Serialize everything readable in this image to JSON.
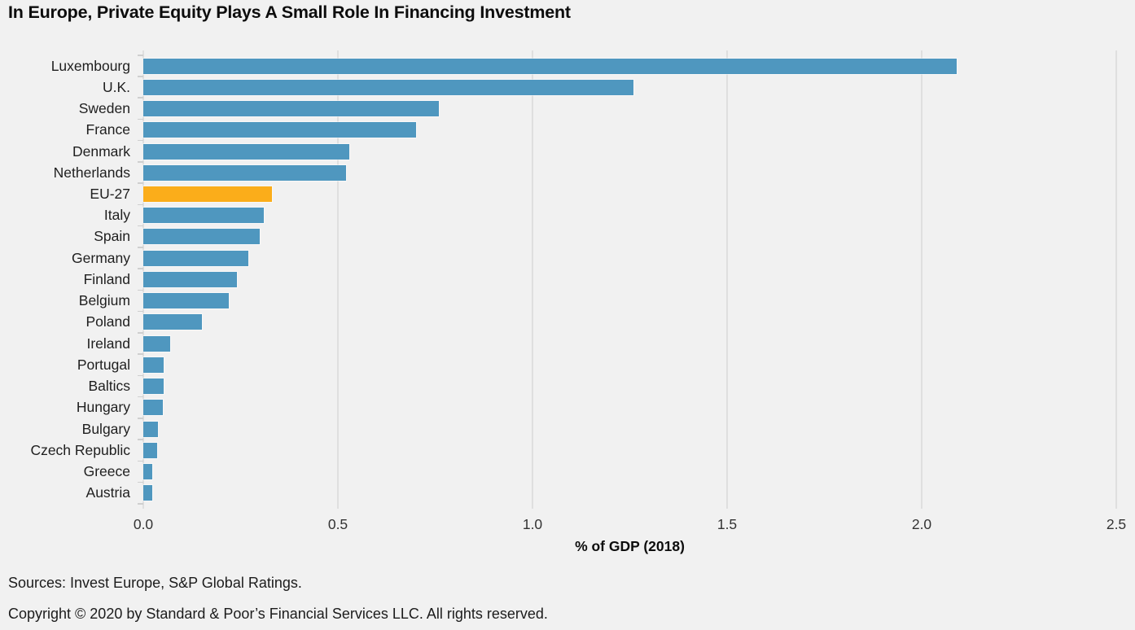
{
  "title": "In Europe, Private Equity Plays A Small Role In Financing Investment",
  "chart_data": {
    "type": "bar",
    "orientation": "horizontal",
    "title": "In Europe, Private Equity Plays A Small Role In Financing Investment",
    "xlabel": "% of GDP (2018)",
    "ylabel": "",
    "xlim": [
      0,
      2.5
    ],
    "xticks": [
      "0.0",
      "0.5",
      "1.0",
      "1.5",
      "2.0",
      "2.5"
    ],
    "grid": true,
    "categories": [
      "Luxembourg",
      "U.K.",
      "Sweden",
      "France",
      "Denmark",
      "Netherlands",
      "EU-27",
      "Italy",
      "Spain",
      "Germany",
      "Finland",
      "Belgium",
      "Poland",
      "Ireland",
      "Portugal",
      "Baltics",
      "Hungary",
      "Bulgary",
      "Czech Republic",
      "Greece",
      "Austria"
    ],
    "values": [
      2.09,
      1.26,
      0.76,
      0.7,
      0.53,
      0.52,
      0.33,
      0.31,
      0.3,
      0.27,
      0.24,
      0.22,
      0.15,
      0.07,
      0.053,
      0.052,
      0.05,
      0.038,
      0.036,
      0.024,
      0.022
    ],
    "highlight_category": "EU-27",
    "colors": {
      "bar": "#4f97bf",
      "highlight": "#fbad1a",
      "gridline": "#dfdfdf",
      "background": "#f1f1f1"
    },
    "legend": null
  },
  "footer": {
    "sources": "Sources: Invest Europe, S&P Global Ratings.",
    "copyright": "Copyright © 2020 by Standard & Poor’s Financial Services LLC. All rights reserved."
  }
}
